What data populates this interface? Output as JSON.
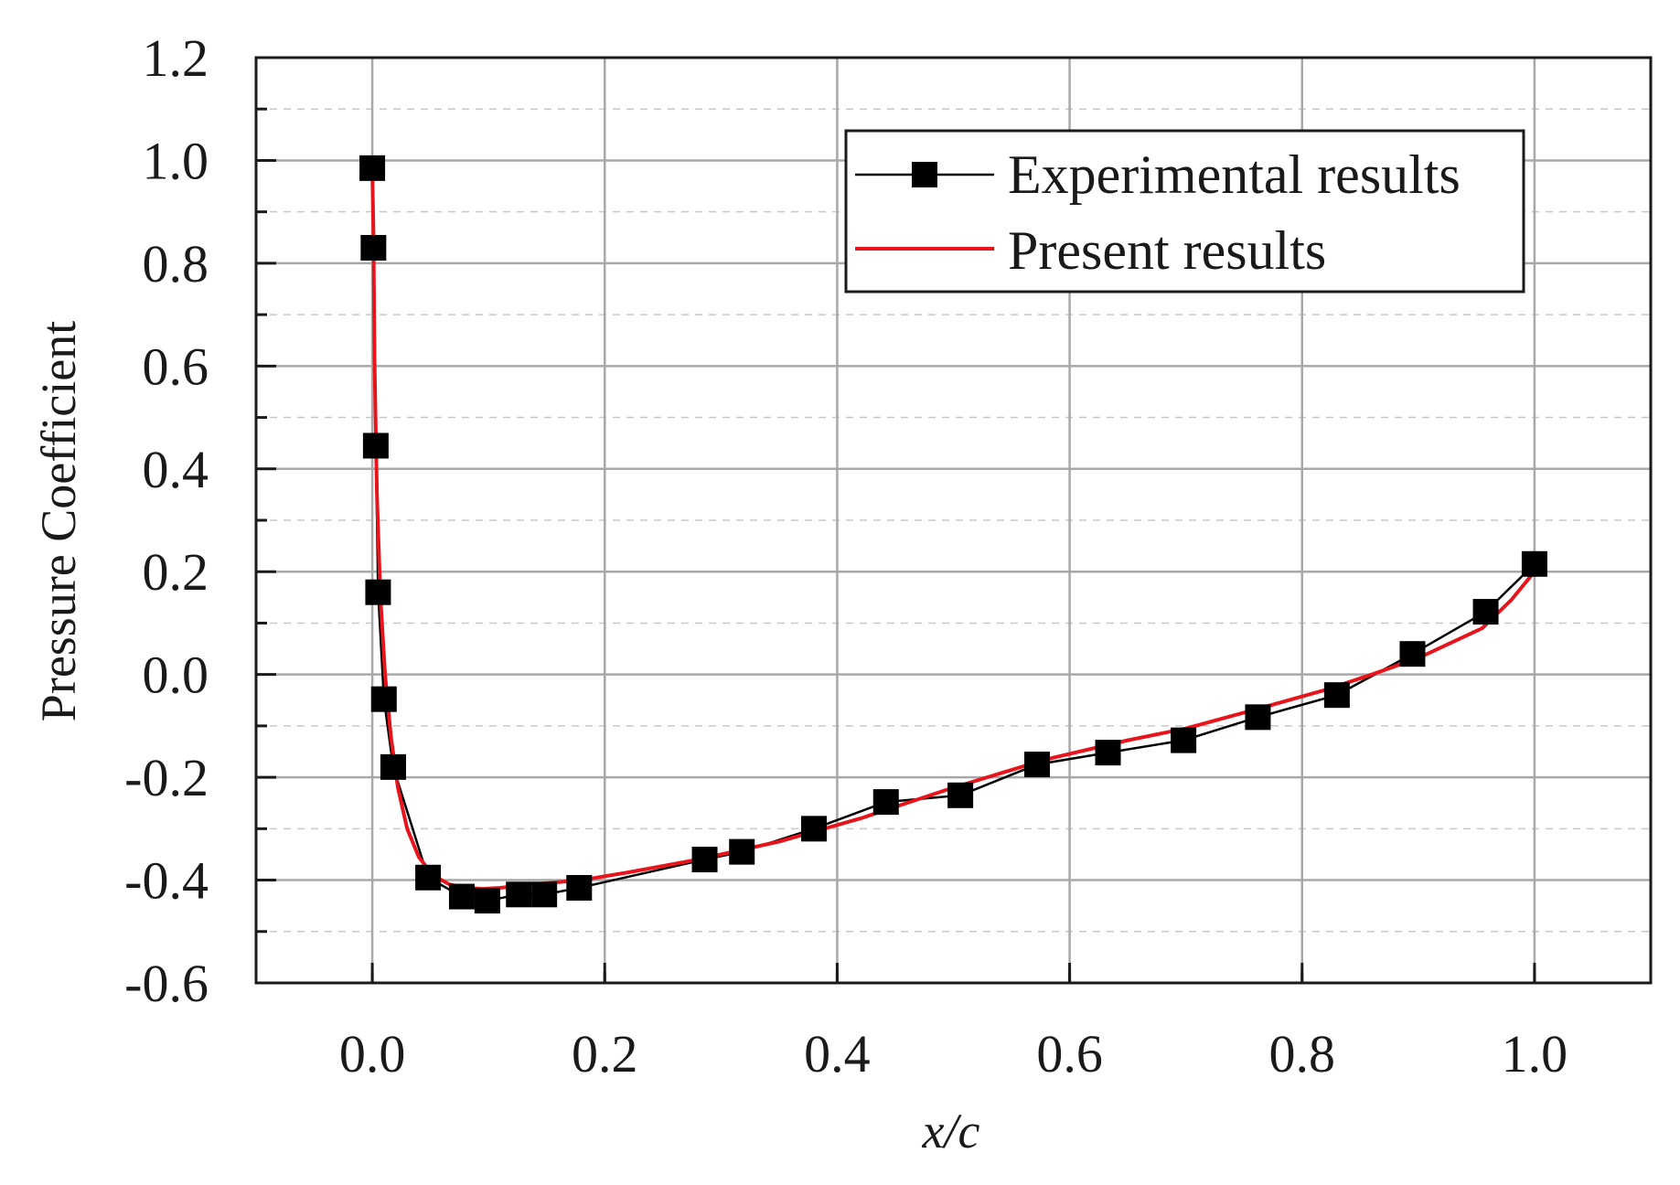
{
  "chart_data": {
    "type": "line",
    "xlabel": "x/c",
    "ylabel": "Pressure Coefficient",
    "xlim": [
      -0.1,
      1.1
    ],
    "ylim": [
      -0.6,
      1.2
    ],
    "x_ticks": [
      0.0,
      0.2,
      0.4,
      0.6,
      0.8,
      1.0
    ],
    "x_tick_labels": [
      "0.0",
      "0.2",
      "0.4",
      "0.6",
      "0.8",
      "1.0"
    ],
    "y_ticks": [
      -0.6,
      -0.4,
      -0.2,
      0.0,
      0.2,
      0.4,
      0.6,
      0.8,
      1.0,
      1.2
    ],
    "y_tick_labels": [
      "-0.6",
      "-0.4",
      "-0.2",
      "0.0",
      "0.2",
      "0.4",
      "0.6",
      "0.8",
      "1.0",
      "1.2"
    ],
    "grid": true,
    "legend_position": "top-right",
    "series": [
      {
        "name": "Experimental results",
        "color": "#000000",
        "marker": "square",
        "x": [
          0.0,
          0.001,
          0.003,
          0.005,
          0.01,
          0.018,
          0.048,
          0.077,
          0.099,
          0.126,
          0.148,
          0.178,
          0.286,
          0.318,
          0.38,
          0.442,
          0.506,
          0.572,
          0.633,
          0.698,
          0.762,
          0.83,
          0.895,
          0.958,
          1.0
        ],
        "y": [
          0.985,
          0.83,
          0.445,
          0.16,
          -0.048,
          -0.18,
          -0.395,
          -0.432,
          -0.44,
          -0.428,
          -0.428,
          -0.415,
          -0.36,
          -0.345,
          -0.3,
          -0.248,
          -0.235,
          -0.175,
          -0.152,
          -0.128,
          -0.083,
          -0.04,
          0.04,
          0.122,
          0.215
        ]
      },
      {
        "name": "Present results",
        "color": "#e8141c",
        "marker": "none",
        "x": [
          0.0,
          0.001,
          0.002,
          0.004,
          0.007,
          0.011,
          0.016,
          0.022,
          0.03,
          0.04,
          0.052,
          0.066,
          0.08,
          0.095,
          0.11,
          0.13,
          0.15,
          0.18,
          0.22,
          0.28,
          0.35,
          0.42,
          0.5,
          0.58,
          0.65,
          0.7,
          0.76,
          0.82,
          0.86,
          0.9,
          0.955,
          0.98,
          1.0
        ],
        "y": [
          0.98,
          0.86,
          0.6,
          0.35,
          0.15,
          0.0,
          -0.12,
          -0.22,
          -0.3,
          -0.355,
          -0.39,
          -0.408,
          -0.415,
          -0.417,
          -0.415,
          -0.41,
          -0.406,
          -0.4,
          -0.385,
          -0.36,
          -0.325,
          -0.28,
          -0.22,
          -0.165,
          -0.128,
          -0.105,
          -0.068,
          -0.03,
          0.0,
          0.032,
          0.09,
          0.145,
          0.2
        ]
      }
    ]
  }
}
